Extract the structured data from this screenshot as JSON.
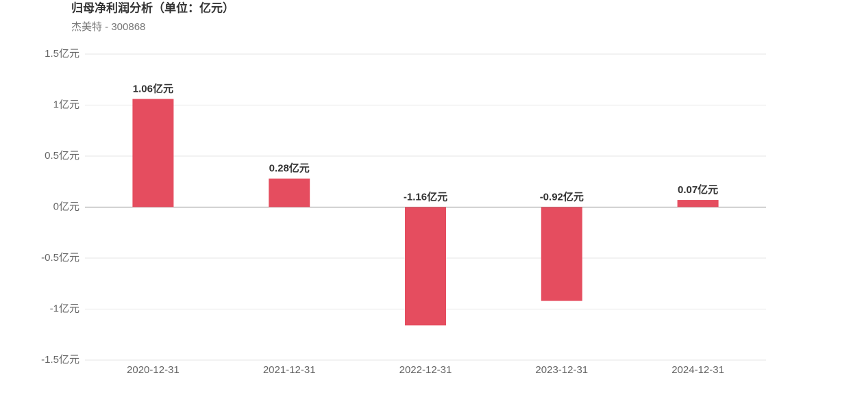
{
  "chart_data": {
    "type": "bar",
    "title": "归母净利润分析（单位：亿元）",
    "subtitle": "杰美特 - 300868",
    "categories": [
      "2020-12-31",
      "2021-12-31",
      "2022-12-31",
      "2023-12-31",
      "2024-12-31"
    ],
    "values": [
      1.06,
      0.28,
      -1.16,
      -0.92,
      0.07
    ],
    "value_labels": [
      "1.06亿元",
      "0.28亿元",
      "-1.16亿元",
      "-0.92亿元",
      "0.07亿元"
    ],
    "color": "#e54d5f",
    "ylim": [
      -1.5,
      1.5
    ],
    "yticks": [
      {
        "value": -1.5,
        "label": "-1.5亿元"
      },
      {
        "value": -1,
        "label": "-1亿元"
      },
      {
        "value": -0.5,
        "label": "-0.5亿元"
      },
      {
        "value": 0,
        "label": "0亿元"
      },
      {
        "value": 0.5,
        "label": "0.5亿元"
      },
      {
        "value": 1,
        "label": "1亿元"
      },
      {
        "value": 1.5,
        "label": "1.5亿元"
      }
    ],
    "grid": true
  }
}
